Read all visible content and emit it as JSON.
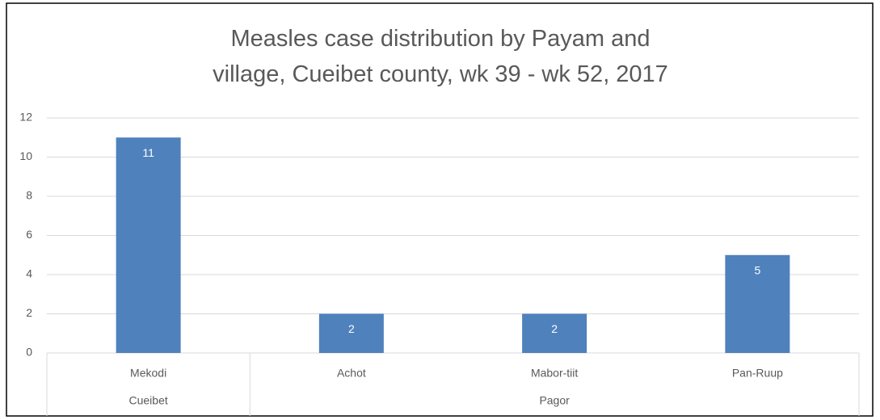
{
  "chart_data": {
    "type": "bar",
    "title": "Measles case distribution  by Payam and village, Cueibet county, wk 39 - wk 52, 2017",
    "groups": [
      {
        "name": "Cueibet",
        "categories": [
          "Mekodi"
        ],
        "values": [
          11
        ]
      },
      {
        "name": "Pagor",
        "categories": [
          "Achot",
          "Mabor-tiit",
          "Pan-Ruup"
        ],
        "values": [
          2,
          2,
          5
        ]
      }
    ],
    "color": "#4f81bd",
    "ylim": [
      0,
      12
    ],
    "yticks": [
      0,
      2,
      4,
      6,
      8,
      10,
      12
    ],
    "grid": true
  }
}
